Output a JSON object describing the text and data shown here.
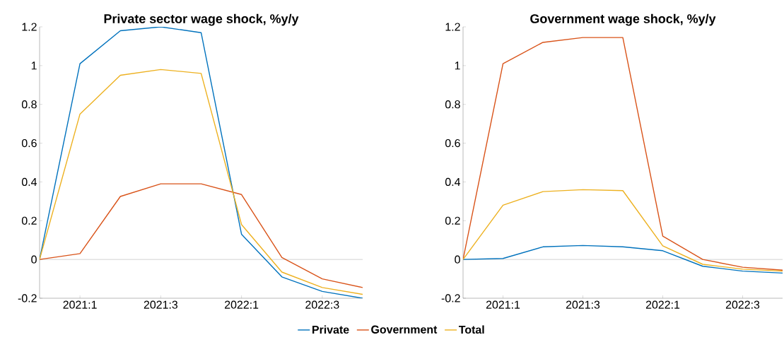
{
  "chart_data": [
    {
      "type": "line",
      "title": "Private sector wage shock, %y/y",
      "categories": [
        null,
        "2021:1",
        null,
        "2021:3",
        null,
        "2022:1",
        null,
        "2022:3",
        null
      ],
      "ylim": [
        -0.2,
        1.2
      ],
      "yticks": [
        -0.2,
        0,
        0.2,
        0.4,
        0.6,
        0.8,
        1,
        1.2
      ],
      "grid": false,
      "legend": "bottom",
      "marker": "none",
      "line_style": "solid",
      "ref_lines": [
        {
          "axis": "y",
          "value": 0,
          "color": "#b4b4b4"
        }
      ],
      "series": [
        {
          "name": "Private",
          "color": "#0072bd",
          "values": [
            0,
            1.01,
            1.18,
            1.2,
            1.17,
            0.13,
            -0.09,
            -0.165,
            -0.2
          ]
        },
        {
          "name": "Government",
          "color": "#d95319",
          "values": [
            0,
            0.03,
            0.325,
            0.39,
            0.39,
            0.335,
            0.01,
            -0.1,
            -0.145
          ]
        },
        {
          "name": "Total",
          "color": "#edb120",
          "values": [
            0,
            0.75,
            0.95,
            0.98,
            0.96,
            0.18,
            -0.065,
            -0.145,
            -0.18
          ]
        }
      ]
    },
    {
      "type": "line",
      "title": "Government wage shock, %y/y",
      "categories": [
        null,
        "2021:1",
        null,
        "2021:3",
        null,
        "2022:1",
        null,
        "2022:3",
        null
      ],
      "ylim": [
        -0.2,
        1.2
      ],
      "yticks": [
        -0.2,
        0,
        0.2,
        0.4,
        0.6,
        0.8,
        1,
        1.2
      ],
      "grid": false,
      "marker": "none",
      "line_style": "solid",
      "ref_lines": [
        {
          "axis": "y",
          "value": 0,
          "color": "#b4b4b4"
        }
      ],
      "series": [
        {
          "color": "#0072bd",
          "values": [
            0,
            0.005,
            0.065,
            0.072,
            0.065,
            0.045,
            -0.035,
            -0.06,
            -0.07
          ]
        },
        {
          "color": "#d95319",
          "values": [
            0,
            1.01,
            1.12,
            1.145,
            1.145,
            0.12,
            0.0,
            -0.04,
            -0.055
          ]
        },
        {
          "color": "#edb120",
          "values": [
            0,
            0.28,
            0.35,
            0.36,
            0.355,
            0.07,
            -0.025,
            -0.05,
            -0.06
          ]
        }
      ]
    }
  ]
}
